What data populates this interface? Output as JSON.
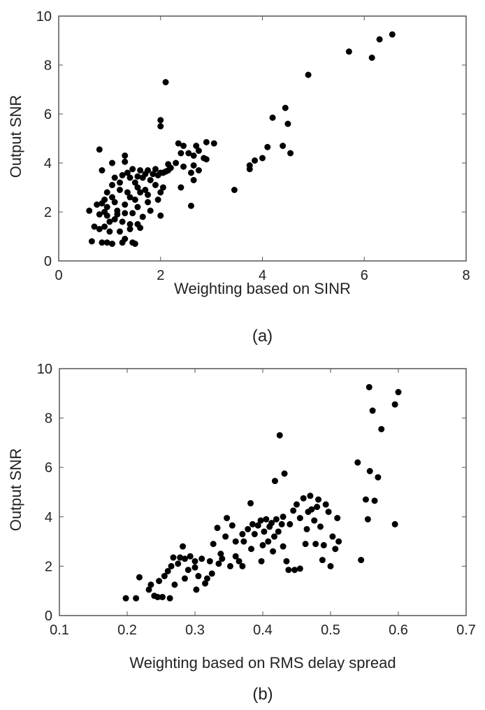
{
  "chart_data": [
    {
      "type": "scatter",
      "caption": "(a)",
      "xlabel": "Weighting based on SINR",
      "ylabel": "Output SNR",
      "xlim": [
        0,
        8
      ],
      "ylim": [
        0,
        10
      ],
      "xticks": [
        "0",
        "2",
        "4",
        "6",
        "8"
      ],
      "yticks": [
        "0",
        "2",
        "4",
        "6",
        "8",
        "10"
      ],
      "grid": false,
      "color": "#000000",
      "points": [
        [
          2.1,
          7.3
        ],
        [
          4.9,
          7.6
        ],
        [
          5.7,
          8.55
        ],
        [
          6.15,
          8.3
        ],
        [
          6.3,
          9.05
        ],
        [
          6.55,
          9.25
        ],
        [
          4.2,
          5.85
        ],
        [
          4.45,
          6.25
        ],
        [
          4.5,
          5.6
        ],
        [
          4.4,
          4.7
        ],
        [
          4.55,
          4.4
        ],
        [
          4.1,
          4.65
        ],
        [
          4.0,
          4.2
        ],
        [
          3.85,
          4.1
        ],
        [
          3.75,
          3.9
        ],
        [
          3.75,
          3.75
        ],
        [
          3.45,
          2.9
        ],
        [
          2.6,
          2.25
        ],
        [
          2.0,
          5.75
        ],
        [
          2.0,
          5.5
        ],
        [
          3.05,
          4.8
        ],
        [
          2.9,
          4.85
        ],
        [
          2.9,
          4.15
        ],
        [
          2.35,
          4.8
        ],
        [
          2.45,
          4.7
        ],
        [
          2.7,
          4.7
        ],
        [
          2.75,
          4.5
        ],
        [
          2.55,
          4.4
        ],
        [
          2.65,
          4.3
        ],
        [
          2.85,
          4.2
        ],
        [
          2.4,
          4.4
        ],
        [
          2.3,
          4.0
        ],
        [
          2.45,
          3.85
        ],
        [
          2.65,
          3.9
        ],
        [
          2.75,
          3.7
        ],
        [
          2.6,
          3.6
        ],
        [
          2.65,
          3.3
        ],
        [
          2.4,
          3.0
        ],
        [
          2.0,
          1.85
        ],
        [
          2.0,
          2.8
        ],
        [
          0.8,
          4.55
        ],
        [
          1.3,
          4.3
        ],
        [
          1.3,
          4.05
        ],
        [
          1.05,
          4.0
        ],
        [
          0.85,
          3.7
        ],
        [
          1.6,
          3.7
        ],
        [
          1.45,
          3.75
        ],
        [
          1.75,
          3.7
        ],
        [
          1.9,
          3.75
        ],
        [
          2.1,
          3.65
        ],
        [
          2.2,
          3.8
        ],
        [
          2.15,
          3.95
        ],
        [
          2.05,
          3.6
        ],
        [
          1.95,
          3.5
        ],
        [
          1.7,
          3.55
        ],
        [
          1.55,
          3.45
        ],
        [
          1.4,
          3.4
        ],
        [
          1.25,
          3.5
        ],
        [
          1.2,
          3.2
        ],
        [
          1.5,
          3.2
        ],
        [
          1.8,
          3.3
        ],
        [
          1.9,
          3.1
        ],
        [
          2.05,
          3.0
        ],
        [
          1.7,
          2.9
        ],
        [
          1.6,
          2.8
        ],
        [
          1.5,
          2.5
        ],
        [
          1.35,
          2.8
        ],
        [
          1.2,
          2.9
        ],
        [
          1.05,
          3.1
        ],
        [
          0.95,
          2.8
        ],
        [
          0.9,
          2.5
        ],
        [
          1.05,
          2.6
        ],
        [
          1.3,
          2.3
        ],
        [
          1.55,
          2.2
        ],
        [
          1.75,
          2.4
        ],
        [
          1.8,
          2.05
        ],
        [
          1.65,
          1.8
        ],
        [
          1.45,
          1.95
        ],
        [
          1.3,
          1.95
        ],
        [
          1.15,
          2.05
        ],
        [
          0.95,
          2.2
        ],
        [
          0.85,
          2.35
        ],
        [
          0.75,
          2.3
        ],
        [
          0.6,
          2.05
        ],
        [
          0.8,
          1.9
        ],
        [
          0.95,
          1.85
        ],
        [
          1.1,
          1.7
        ],
        [
          1.25,
          1.6
        ],
        [
          1.4,
          1.5
        ],
        [
          1.55,
          1.5
        ],
        [
          1.6,
          1.35
        ],
        [
          1.4,
          1.3
        ],
        [
          0.9,
          1.4
        ],
        [
          0.7,
          1.4
        ],
        [
          0.8,
          1.3
        ],
        [
          1.0,
          1.2
        ],
        [
          1.2,
          1.2
        ],
        [
          1.3,
          0.9
        ],
        [
          0.65,
          0.8
        ],
        [
          0.85,
          0.75
        ],
        [
          0.95,
          0.75
        ],
        [
          1.05,
          0.7
        ],
        [
          1.25,
          0.75
        ],
        [
          1.45,
          0.75
        ],
        [
          1.5,
          0.7
        ],
        [
          1.1,
          2.4
        ],
        [
          1.0,
          1.6
        ],
        [
          0.9,
          2.0
        ],
        [
          1.15,
          1.9
        ],
        [
          1.4,
          2.6
        ],
        [
          1.55,
          3.0
        ],
        [
          1.85,
          3.55
        ],
        [
          2.0,
          3.6
        ],
        [
          2.15,
          3.7
        ],
        [
          1.65,
          3.4
        ],
        [
          1.35,
          3.6
        ],
        [
          1.1,
          3.4
        ],
        [
          1.95,
          2.5
        ],
        [
          1.75,
          2.7
        ]
      ]
    },
    {
      "type": "scatter",
      "caption": "(b)",
      "xlabel": "Weighting based on RMS delay spread",
      "ylabel": "Output SNR",
      "xlim": [
        0.1,
        0.7
      ],
      "ylim": [
        0,
        10
      ],
      "xticks": [
        "0.1",
        "0.2",
        "0.3",
        "0.4",
        "0.5",
        "0.6",
        "0.7"
      ],
      "yticks": [
        "0",
        "2",
        "4",
        "6",
        "8",
        "10"
      ],
      "grid": false,
      "color": "#000000",
      "points": [
        [
          0.557,
          9.25
        ],
        [
          0.6,
          9.05
        ],
        [
          0.595,
          8.55
        ],
        [
          0.562,
          8.3
        ],
        [
          0.575,
          7.55
        ],
        [
          0.54,
          6.2
        ],
        [
          0.558,
          5.85
        ],
        [
          0.57,
          5.6
        ],
        [
          0.552,
          4.7
        ],
        [
          0.565,
          4.65
        ],
        [
          0.555,
          3.9
        ],
        [
          0.595,
          3.7
        ],
        [
          0.545,
          2.25
        ],
        [
          0.425,
          7.3
        ],
        [
          0.432,
          5.75
        ],
        [
          0.418,
          5.45
        ],
        [
          0.198,
          0.7
        ],
        [
          0.213,
          0.7
        ],
        [
          0.218,
          1.55
        ],
        [
          0.232,
          1.05
        ],
        [
          0.235,
          1.25
        ],
        [
          0.24,
          0.8
        ],
        [
          0.245,
          0.75
        ],
        [
          0.252,
          0.75
        ],
        [
          0.247,
          1.4
        ],
        [
          0.255,
          1.6
        ],
        [
          0.26,
          1.8
        ],
        [
          0.265,
          2.0
        ],
        [
          0.268,
          2.35
        ],
        [
          0.263,
          0.7
        ],
        [
          0.275,
          2.1
        ],
        [
          0.278,
          2.35
        ],
        [
          0.282,
          2.8
        ],
        [
          0.285,
          2.3
        ],
        [
          0.29,
          1.85
        ],
        [
          0.293,
          2.4
        ],
        [
          0.3,
          2.2
        ],
        [
          0.302,
          1.05
        ],
        [
          0.305,
          1.6
        ],
        [
          0.3,
          1.95
        ],
        [
          0.31,
          2.3
        ],
        [
          0.318,
          1.5
        ],
        [
          0.325,
          1.7
        ],
        [
          0.327,
          2.9
        ],
        [
          0.333,
          3.55
        ],
        [
          0.335,
          2.1
        ],
        [
          0.34,
          2.3
        ],
        [
          0.347,
          3.95
        ],
        [
          0.345,
          3.2
        ],
        [
          0.355,
          3.65
        ],
        [
          0.36,
          2.4
        ],
        [
          0.365,
          2.2
        ],
        [
          0.37,
          2.0
        ],
        [
          0.372,
          3.0
        ],
        [
          0.378,
          3.5
        ],
        [
          0.382,
          4.55
        ],
        [
          0.385,
          3.7
        ],
        [
          0.388,
          3.3
        ],
        [
          0.393,
          3.65
        ],
        [
          0.397,
          3.85
        ],
        [
          0.4,
          2.85
        ],
        [
          0.402,
          3.4
        ],
        [
          0.405,
          3.9
        ],
        [
          0.41,
          3.6
        ],
        [
          0.413,
          3.75
        ],
        [
          0.417,
          3.2
        ],
        [
          0.42,
          3.9
        ],
        [
          0.423,
          3.4
        ],
        [
          0.428,
          3.7
        ],
        [
          0.43,
          4.0
        ],
        [
          0.435,
          2.2
        ],
        [
          0.438,
          1.85
        ],
        [
          0.44,
          3.7
        ],
        [
          0.445,
          4.25
        ],
        [
          0.45,
          4.5
        ],
        [
          0.455,
          3.95
        ],
        [
          0.46,
          4.75
        ],
        [
          0.463,
          2.9
        ],
        [
          0.467,
          4.2
        ],
        [
          0.47,
          4.85
        ],
        [
          0.472,
          4.3
        ],
        [
          0.476,
          3.85
        ],
        [
          0.478,
          2.9
        ],
        [
          0.482,
          4.7
        ],
        [
          0.485,
          3.6
        ],
        [
          0.488,
          2.25
        ],
        [
          0.49,
          2.85
        ],
        [
          0.493,
          4.5
        ],
        [
          0.497,
          4.2
        ],
        [
          0.5,
          2.0
        ],
        [
          0.503,
          3.2
        ],
        [
          0.507,
          2.7
        ],
        [
          0.51,
          3.95
        ],
        [
          0.512,
          3.0
        ],
        [
          0.398,
          2.2
        ],
        [
          0.383,
          2.7
        ],
        [
          0.37,
          3.3
        ],
        [
          0.36,
          3.0
        ],
        [
          0.352,
          2.0
        ],
        [
          0.338,
          2.5
        ],
        [
          0.322,
          2.2
        ],
        [
          0.315,
          1.3
        ],
        [
          0.43,
          2.8
        ],
        [
          0.447,
          1.85
        ],
        [
          0.455,
          1.9
        ],
        [
          0.465,
          3.5
        ],
        [
          0.48,
          4.4
        ],
        [
          0.408,
          3.0
        ],
        [
          0.415,
          2.6
        ],
        [
          0.285,
          1.5
        ],
        [
          0.27,
          1.25
        ]
      ]
    }
  ]
}
